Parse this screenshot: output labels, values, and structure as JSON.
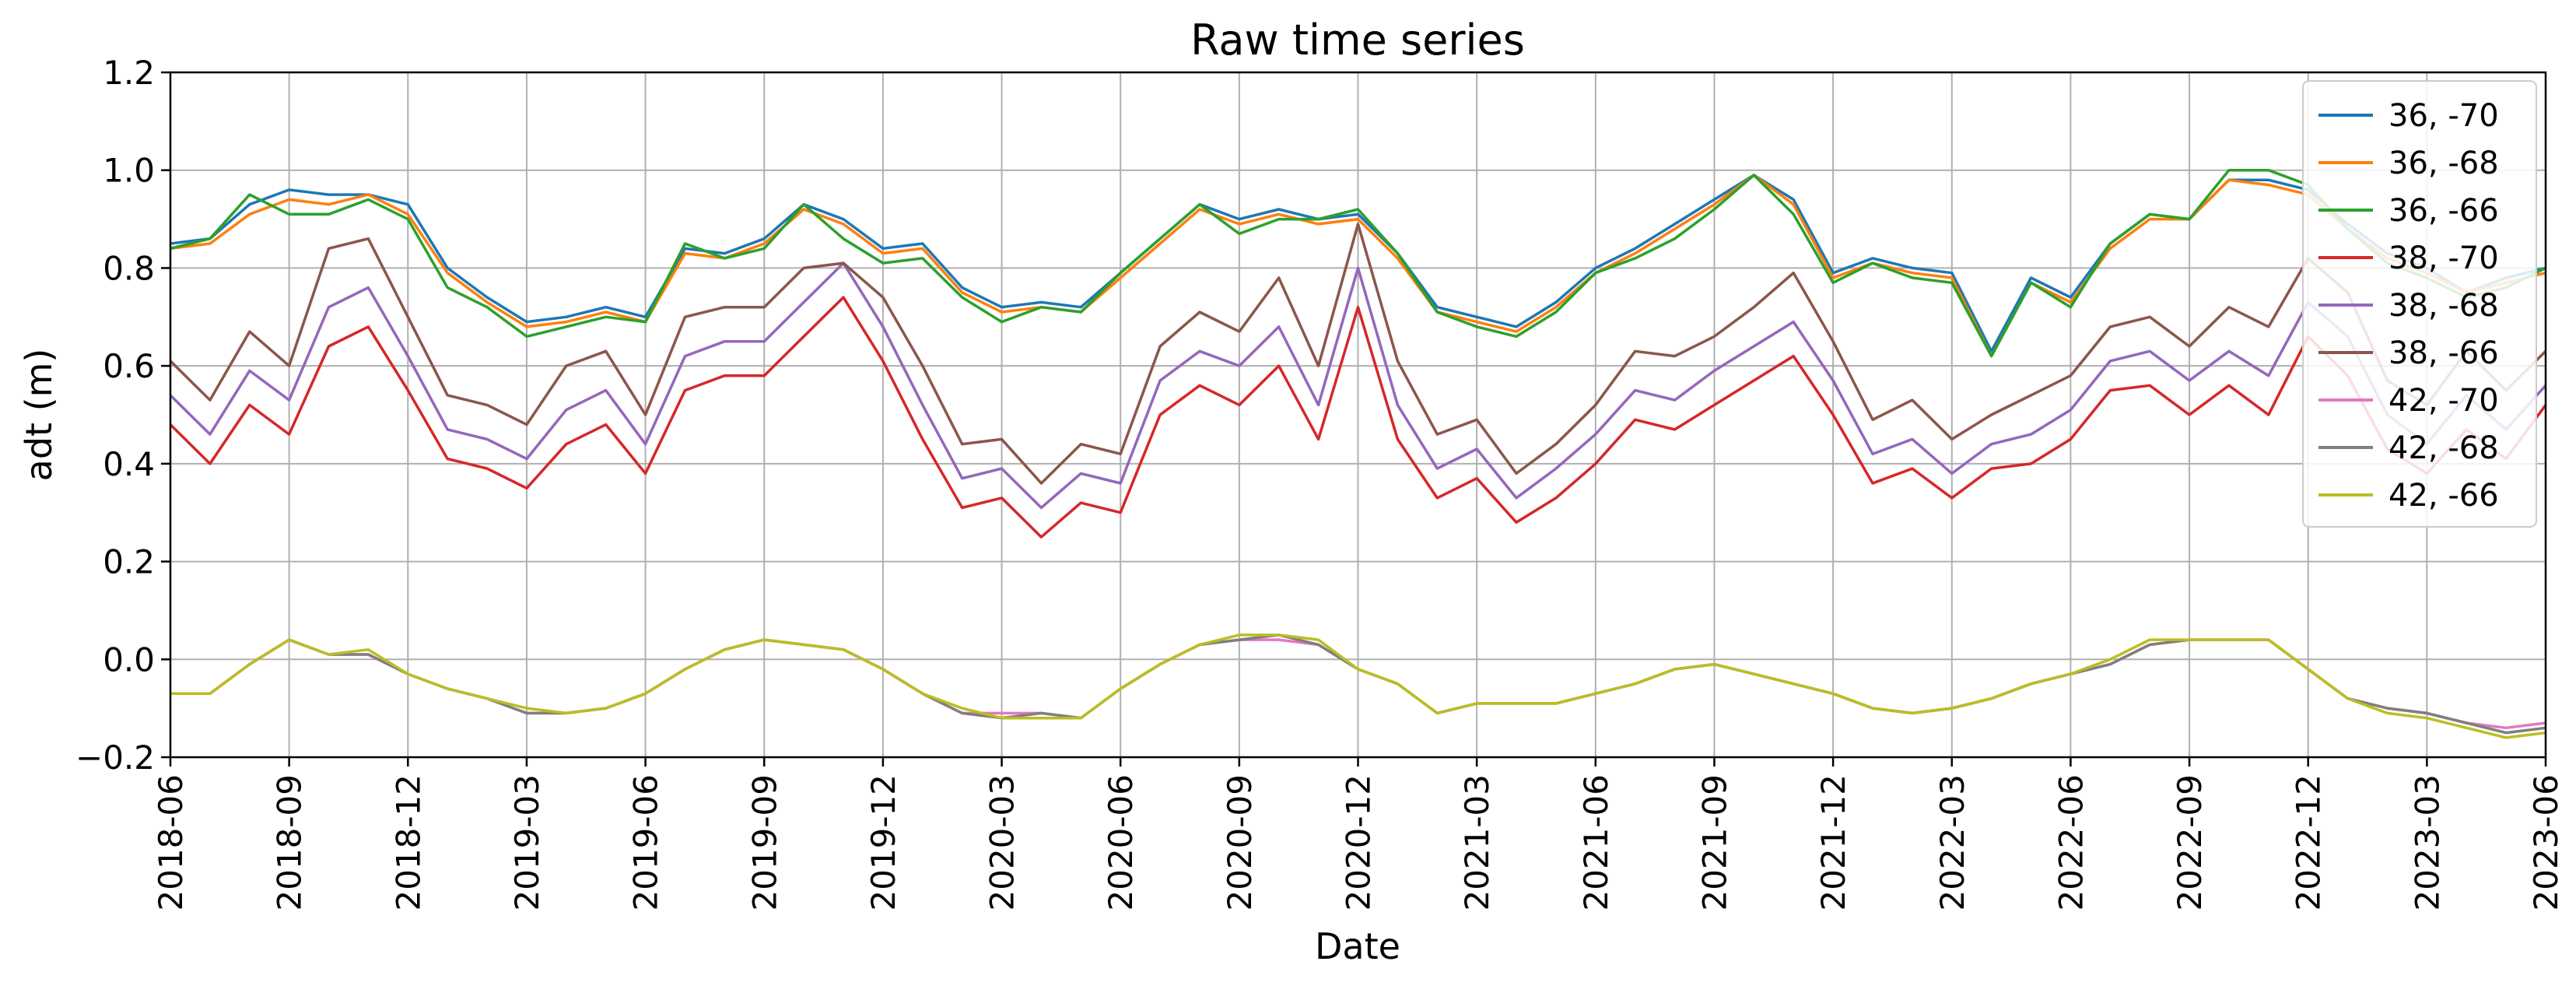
{
  "chart_data": {
    "type": "line",
    "title": "Raw time series",
    "xlabel": "Date",
    "ylabel": "adt (m)",
    "xlim": [
      "2018-06",
      "2023-06"
    ],
    "ylim": [
      -0.2,
      1.2
    ],
    "yticks": [
      -0.2,
      0.0,
      0.2,
      0.4,
      0.6,
      0.8,
      1.0,
      1.2
    ],
    "ytick_labels": [
      "−0.2",
      "0.0",
      "0.2",
      "0.4",
      "0.6",
      "0.8",
      "1.0",
      "1.2"
    ],
    "xtick_labels": [
      "2018-06",
      "2018-09",
      "2018-12",
      "2019-03",
      "2019-06",
      "2019-09",
      "2019-12",
      "2020-03",
      "2020-06",
      "2020-09",
      "2020-12",
      "2021-03",
      "2021-06",
      "2021-09",
      "2021-12",
      "2022-03",
      "2022-06",
      "2022-09",
      "2022-12",
      "2023-03",
      "2023-06"
    ],
    "grid": true,
    "legend_position": "top-right",
    "x": [
      "2018-06-01",
      "2018-07-01",
      "2018-08-01",
      "2018-09-01",
      "2018-10-01",
      "2018-11-01",
      "2018-12-01",
      "2019-01-01",
      "2019-02-01",
      "2019-03-01",
      "2019-04-01",
      "2019-05-01",
      "2019-06-01",
      "2019-07-01",
      "2019-08-01",
      "2019-09-01",
      "2019-10-01",
      "2019-11-01",
      "2019-12-01",
      "2020-01-01",
      "2020-02-01",
      "2020-03-01",
      "2020-04-01",
      "2020-05-01",
      "2020-06-01",
      "2020-07-01",
      "2020-08-01",
      "2020-09-01",
      "2020-10-01",
      "2020-11-01",
      "2020-12-01",
      "2021-01-01",
      "2021-02-01",
      "2021-03-01",
      "2021-04-01",
      "2021-05-01",
      "2021-06-01",
      "2021-07-01",
      "2021-08-01",
      "2021-09-01",
      "2021-10-01",
      "2021-11-01",
      "2021-12-01",
      "2022-01-01",
      "2022-02-01",
      "2022-03-01",
      "2022-04-01",
      "2022-05-01",
      "2022-06-01",
      "2022-07-01",
      "2022-08-01",
      "2022-09-01",
      "2022-10-01",
      "2022-11-01",
      "2022-12-01",
      "2023-01-01",
      "2023-02-01",
      "2023-03-01",
      "2023-04-01",
      "2023-05-01",
      "2023-06-01"
    ],
    "series": [
      {
        "name": "36, -70",
        "color": "#1f77b4",
        "values": [
          0.85,
          0.86,
          0.93,
          0.96,
          0.95,
          0.95,
          0.93,
          0.8,
          0.74,
          0.69,
          0.7,
          0.72,
          0.7,
          0.84,
          0.83,
          0.86,
          0.93,
          0.9,
          0.84,
          0.85,
          0.76,
          0.72,
          0.73,
          0.72,
          0.79,
          0.86,
          0.93,
          0.9,
          0.92,
          0.9,
          0.91,
          0.83,
          0.72,
          0.7,
          0.68,
          0.73,
          0.8,
          0.84,
          0.89,
          0.94,
          0.99,
          0.94,
          0.79,
          0.82,
          0.8,
          0.79,
          0.63,
          0.78,
          0.74,
          0.85,
          0.91,
          0.9,
          0.98,
          0.98,
          0.96,
          0.89,
          0.83,
          0.8,
          0.75,
          0.78,
          0.8
        ]
      },
      {
        "name": "36, -68",
        "color": "#ff7f0e",
        "values": [
          0.84,
          0.85,
          0.91,
          0.94,
          0.93,
          0.95,
          0.91,
          0.79,
          0.73,
          0.68,
          0.69,
          0.71,
          0.69,
          0.83,
          0.82,
          0.85,
          0.92,
          0.89,
          0.83,
          0.84,
          0.75,
          0.71,
          0.72,
          0.71,
          0.78,
          0.85,
          0.92,
          0.89,
          0.91,
          0.89,
          0.9,
          0.82,
          0.71,
          0.69,
          0.67,
          0.72,
          0.79,
          0.83,
          0.88,
          0.93,
          0.99,
          0.93,
          0.78,
          0.81,
          0.79,
          0.78,
          0.62,
          0.77,
          0.73,
          0.84,
          0.9,
          0.9,
          0.98,
          0.97,
          0.95,
          0.88,
          0.82,
          0.79,
          0.75,
          0.77,
          0.79
        ]
      },
      {
        "name": "36, -66",
        "color": "#2ca02c",
        "values": [
          0.84,
          0.86,
          0.95,
          0.91,
          0.91,
          0.94,
          0.9,
          0.76,
          0.72,
          0.66,
          0.68,
          0.7,
          0.69,
          0.85,
          0.82,
          0.84,
          0.93,
          0.86,
          0.81,
          0.82,
          0.74,
          0.69,
          0.72,
          0.71,
          0.79,
          0.86,
          0.93,
          0.87,
          0.9,
          0.9,
          0.92,
          0.83,
          0.71,
          0.68,
          0.66,
          0.71,
          0.79,
          0.82,
          0.86,
          0.92,
          0.99,
          0.91,
          0.77,
          0.81,
          0.78,
          0.77,
          0.62,
          0.77,
          0.72,
          0.85,
          0.91,
          0.9,
          1.0,
          1.0,
          0.97,
          0.88,
          0.81,
          0.78,
          0.74,
          0.76,
          0.8
        ]
      },
      {
        "name": "38, -70",
        "color": "#d62728",
        "values": [
          0.48,
          0.4,
          0.52,
          0.46,
          0.64,
          0.68,
          0.55,
          0.41,
          0.39,
          0.35,
          0.44,
          0.48,
          0.38,
          0.55,
          0.58,
          0.58,
          0.66,
          0.74,
          0.61,
          0.45,
          0.31,
          0.33,
          0.25,
          0.32,
          0.3,
          0.5,
          0.56,
          0.52,
          0.6,
          0.45,
          0.72,
          0.45,
          0.33,
          0.37,
          0.28,
          0.33,
          0.4,
          0.49,
          0.47,
          0.52,
          0.57,
          0.62,
          0.5,
          0.36,
          0.39,
          0.33,
          0.39,
          0.4,
          0.45,
          0.55,
          0.56,
          0.5,
          0.56,
          0.5,
          0.66,
          0.58,
          0.43,
          0.38,
          0.47,
          0.41,
          0.52
        ]
      },
      {
        "name": "38, -68",
        "color": "#9467bd",
        "values": [
          0.54,
          0.46,
          0.59,
          0.53,
          0.72,
          0.76,
          0.62,
          0.47,
          0.45,
          0.41,
          0.51,
          0.55,
          0.44,
          0.62,
          0.65,
          0.65,
          0.73,
          0.81,
          0.68,
          0.52,
          0.37,
          0.39,
          0.31,
          0.38,
          0.36,
          0.57,
          0.63,
          0.6,
          0.68,
          0.52,
          0.8,
          0.52,
          0.39,
          0.43,
          0.33,
          0.39,
          0.46,
          0.55,
          0.53,
          0.59,
          0.64,
          0.69,
          0.57,
          0.42,
          0.45,
          0.38,
          0.44,
          0.46,
          0.51,
          0.61,
          0.63,
          0.57,
          0.63,
          0.58,
          0.73,
          0.66,
          0.5,
          0.44,
          0.54,
          0.47,
          0.56
        ]
      },
      {
        "name": "38, -66",
        "color": "#8c564b",
        "values": [
          0.61,
          0.53,
          0.67,
          0.6,
          0.84,
          0.86,
          0.7,
          0.54,
          0.52,
          0.48,
          0.6,
          0.63,
          0.5,
          0.7,
          0.72,
          0.72,
          0.8,
          0.81,
          0.74,
          0.6,
          0.44,
          0.45,
          0.36,
          0.44,
          0.42,
          0.64,
          0.71,
          0.67,
          0.78,
          0.6,
          0.89,
          0.61,
          0.46,
          0.49,
          0.38,
          0.44,
          0.52,
          0.63,
          0.62,
          0.66,
          0.72,
          0.79,
          0.65,
          0.49,
          0.53,
          0.45,
          0.5,
          0.54,
          0.58,
          0.68,
          0.7,
          0.64,
          0.72,
          0.68,
          0.82,
          0.75,
          0.57,
          0.52,
          0.63,
          0.55,
          0.63
        ]
      },
      {
        "name": "42, -70",
        "color": "#e377c2",
        "values": [
          -0.07,
          -0.07,
          -0.01,
          0.04,
          0.01,
          0.01,
          -0.03,
          -0.06,
          -0.08,
          -0.11,
          -0.11,
          -0.1,
          -0.07,
          -0.02,
          0.02,
          0.04,
          0.03,
          0.02,
          -0.02,
          -0.07,
          -0.11,
          -0.11,
          -0.11,
          -0.12,
          -0.06,
          -0.01,
          0.03,
          0.04,
          0.04,
          0.03,
          -0.02,
          -0.05,
          -0.11,
          -0.09,
          -0.09,
          -0.09,
          -0.07,
          -0.05,
          -0.02,
          -0.01,
          -0.03,
          -0.05,
          -0.07,
          -0.1,
          -0.11,
          -0.1,
          -0.08,
          -0.05,
          -0.03,
          -0.01,
          0.03,
          0.04,
          0.04,
          0.04,
          -0.02,
          -0.08,
          -0.1,
          -0.11,
          -0.13,
          -0.14,
          -0.13
        ]
      },
      {
        "name": "42, -68",
        "color": "#7f7f7f",
        "values": [
          -0.07,
          -0.07,
          -0.01,
          0.04,
          0.01,
          0.01,
          -0.03,
          -0.06,
          -0.08,
          -0.11,
          -0.11,
          -0.1,
          -0.07,
          -0.02,
          0.02,
          0.04,
          0.03,
          0.02,
          -0.02,
          -0.07,
          -0.11,
          -0.12,
          -0.11,
          -0.12,
          -0.06,
          -0.01,
          0.03,
          0.04,
          0.05,
          0.03,
          -0.02,
          -0.05,
          -0.11,
          -0.09,
          -0.09,
          -0.09,
          -0.07,
          -0.05,
          -0.02,
          -0.01,
          -0.03,
          -0.05,
          -0.07,
          -0.1,
          -0.11,
          -0.1,
          -0.08,
          -0.05,
          -0.03,
          -0.01,
          0.03,
          0.04,
          0.04,
          0.04,
          -0.02,
          -0.08,
          -0.1,
          -0.11,
          -0.13,
          -0.15,
          -0.14
        ]
      },
      {
        "name": "42, -66",
        "color": "#bcbd22",
        "values": [
          -0.07,
          -0.07,
          -0.01,
          0.04,
          0.01,
          0.02,
          -0.03,
          -0.06,
          -0.08,
          -0.1,
          -0.11,
          -0.1,
          -0.07,
          -0.02,
          0.02,
          0.04,
          0.03,
          0.02,
          -0.02,
          -0.07,
          -0.1,
          -0.12,
          -0.12,
          -0.12,
          -0.06,
          -0.01,
          0.03,
          0.05,
          0.05,
          0.04,
          -0.02,
          -0.05,
          -0.11,
          -0.09,
          -0.09,
          -0.09,
          -0.07,
          -0.05,
          -0.02,
          -0.01,
          -0.03,
          -0.05,
          -0.07,
          -0.1,
          -0.11,
          -0.1,
          -0.08,
          -0.05,
          -0.03,
          0.0,
          0.04,
          0.04,
          0.04,
          0.04,
          -0.02,
          -0.08,
          -0.11,
          -0.12,
          -0.14,
          -0.16,
          -0.15
        ]
      }
    ]
  }
}
